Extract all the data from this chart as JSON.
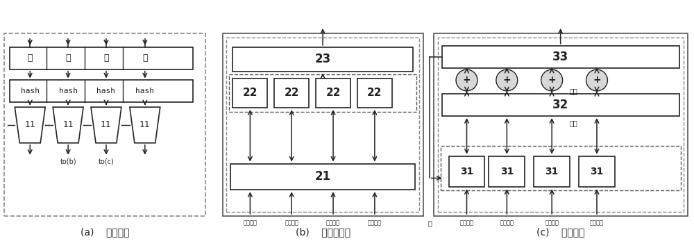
{
  "title_a": "(a)    哈希单元",
  "title_b": "(b)    直方图单元",
  "title_c": "(c)    混排单元",
  "label_key": "键",
  "label_hash": "hash",
  "label_11": "11",
  "label_21": "21",
  "label_22": "22",
  "label_23": "23",
  "label_31": "31",
  "label_32": "32",
  "label_33": "33",
  "label_plus": "+",
  "label_offset": "偏移",
  "label_count": "计数",
  "label_hash_index": "哈希索引",
  "label_key2": "键",
  "label_tob": "to(b)",
  "label_toc": "to(c)",
  "ec": "#222222",
  "tc": "#222222",
  "gray": "#888888",
  "dash_color": "#555555"
}
